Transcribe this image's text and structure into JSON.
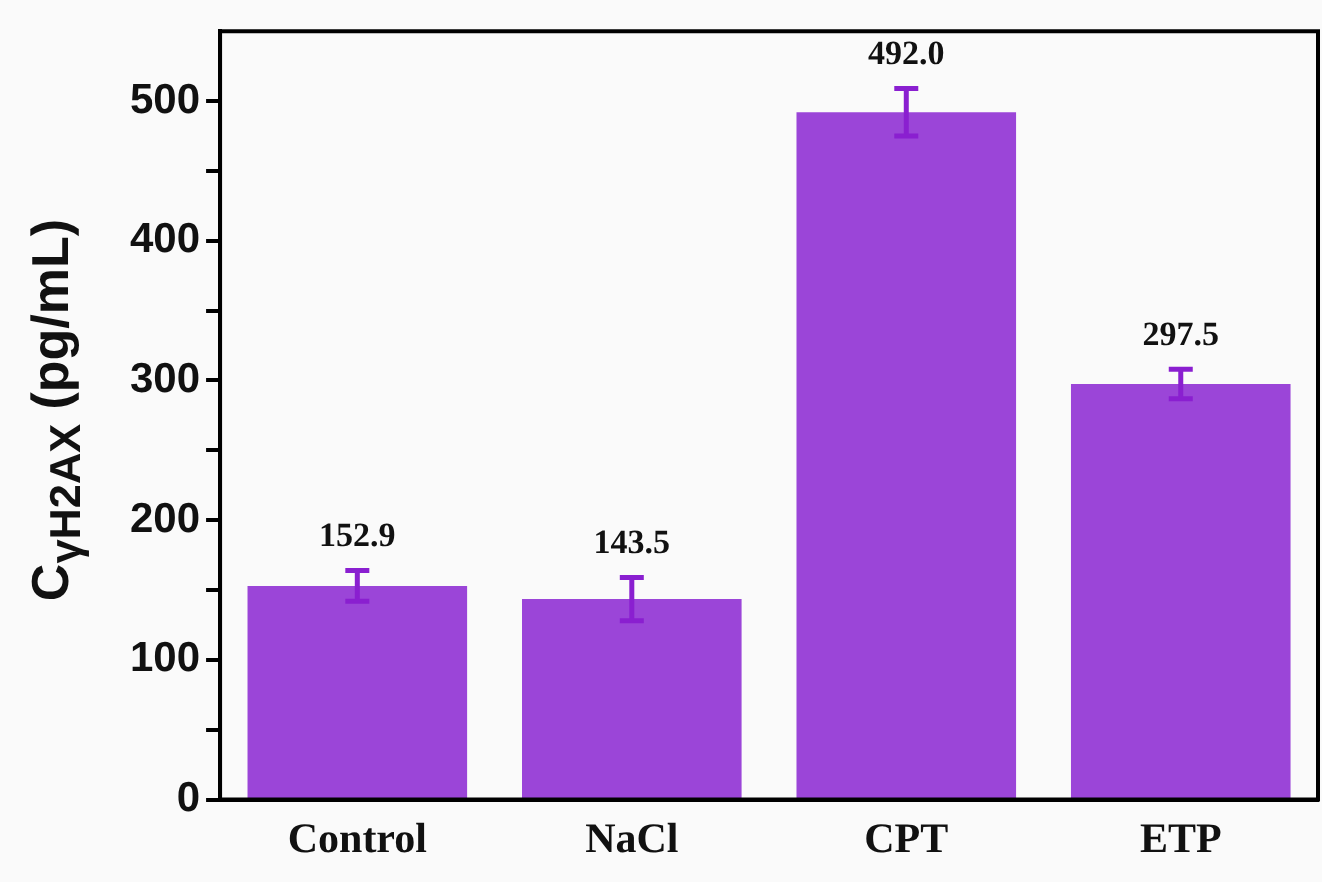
{
  "chart_data": {
    "type": "bar",
    "ylabel": "C$_{γH2AX}$ (pg/mL)",
    "categories": [
      "Control",
      "NaCl",
      "CPT",
      "ETP"
    ],
    "values": [
      152.9,
      143.5,
      492.0,
      297.5
    ],
    "errors": [
      11,
      15.5,
      17,
      10.5
    ],
    "color": "#9b45d8",
    "value_labels": [
      "152.9",
      "143.5",
      "492.0",
      "297.5"
    ],
    "ylim": [
      0,
      550
    ],
    "yticks": [
      0,
      {
        "value": 50,
        "label": null
      },
      100,
      {
        "value": 150,
        "label": null
      },
      200,
      {
        "value": 250,
        "label": null
      },
      300,
      {
        "value": 350,
        "label": null
      },
      400,
      {
        "value": 450,
        "label": null
      },
      500
    ],
    "grid": false,
    "legend": false
  }
}
